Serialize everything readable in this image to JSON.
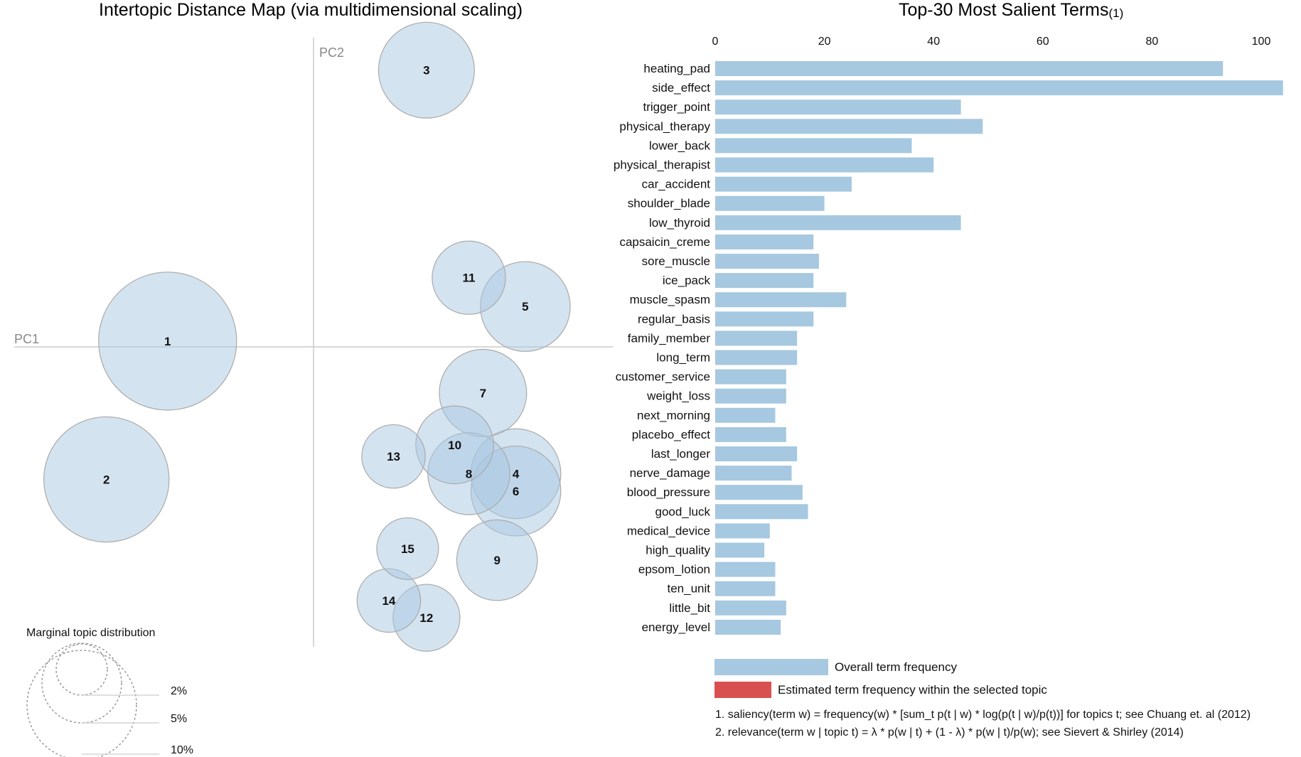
{
  "map": {
    "title": "Intertopic Distance Map (via multidimensional scaling)",
    "pc1_label": "PC1",
    "pc2_label": "PC2",
    "marginal_title": "Marginal topic distribution",
    "marginal_levels": [
      "2%",
      "5%",
      "10%"
    ]
  },
  "terms": {
    "title": "Top-30 Most Salient Terms",
    "title_note": "(1)"
  },
  "legend": {
    "overall": "Overall term frequency",
    "estimated": "Estimated term frequency within the selected topic"
  },
  "notes": [
    "1. saliency(term w) = frequency(w) * [sum_t p(t | w) * log(p(t | w)/p(t))] for topics t; see Chuang et. al (2012)",
    "2. relevance(term w | topic t) = λ * p(w | t) + (1 - λ) * p(w | t)/p(w); see Sievert & Shirley (2014)"
  ],
  "colors": {
    "bar": "#a6c8e0",
    "bar_selected": "#d95050",
    "bubble_fill": "#aac8e2",
    "bubble_stroke": "#aaaaaa",
    "axis": "#cccccc"
  },
  "chart_data": [
    {
      "type": "scatter",
      "title": "Intertopic Distance Map (via multidimensional scaling)",
      "xlabel": "PC1",
      "ylabel": "PC2",
      "note": "topic positions in principal-component units (axes unlabeled; values estimated relative to origin), size = marginal topic distribution %",
      "points": [
        {
          "topic": "1",
          "x": -0.31,
          "y": 0.01,
          "size": 8.5
        },
        {
          "topic": "2",
          "x": -0.44,
          "y": -0.23,
          "size": 7.0
        },
        {
          "topic": "3",
          "x": 0.24,
          "y": 0.48,
          "size": 4.1
        },
        {
          "topic": "4",
          "x": 0.43,
          "y": -0.22,
          "size": 3.6
        },
        {
          "topic": "5",
          "x": 0.45,
          "y": 0.07,
          "size": 3.6
        },
        {
          "topic": "6",
          "x": 0.43,
          "y": -0.25,
          "size": 3.6
        },
        {
          "topic": "7",
          "x": 0.36,
          "y": -0.08,
          "size": 3.4
        },
        {
          "topic": "8",
          "x": 0.33,
          "y": -0.22,
          "size": 3.0
        },
        {
          "topic": "9",
          "x": 0.39,
          "y": -0.37,
          "size": 2.9
        },
        {
          "topic": "10",
          "x": 0.3,
          "y": -0.17,
          "size": 2.7
        },
        {
          "topic": "11",
          "x": 0.33,
          "y": 0.12,
          "size": 2.4
        },
        {
          "topic": "12",
          "x": 0.24,
          "y": -0.47,
          "size": 2.0
        },
        {
          "topic": "13",
          "x": 0.17,
          "y": -0.19,
          "size": 1.8
        },
        {
          "topic": "14",
          "x": 0.16,
          "y": -0.44,
          "size": 1.8
        },
        {
          "topic": "15",
          "x": 0.2,
          "y": -0.35,
          "size": 1.7
        }
      ]
    },
    {
      "type": "bar",
      "orientation": "horizontal",
      "title": "Top-30 Most Salient Terms",
      "xlim": [
        0,
        100
      ],
      "xticks": [
        0,
        20,
        40,
        60,
        80,
        100
      ],
      "categories": [
        "heating_pad",
        "side_effect",
        "trigger_point",
        "physical_therapy",
        "lower_back",
        "physical_therapist",
        "car_accident",
        "shoulder_blade",
        "low_thyroid",
        "capsaicin_creme",
        "sore_muscle",
        "ice_pack",
        "muscle_spasm",
        "regular_basis",
        "family_member",
        "long_term",
        "customer_service",
        "weight_loss",
        "next_morning",
        "placebo_effect",
        "last_longer",
        "nerve_damage",
        "blood_pressure",
        "good_luck",
        "medical_device",
        "high_quality",
        "epsom_lotion",
        "ten_unit",
        "little_bit",
        "energy_level"
      ],
      "series": [
        {
          "name": "Overall term frequency",
          "values": [
            93,
            104,
            45,
            49,
            36,
            40,
            25,
            20,
            45,
            18,
            19,
            18,
            24,
            18,
            15,
            15,
            13,
            13,
            11,
            13,
            15,
            14,
            16,
            17,
            10,
            9,
            11,
            11,
            13,
            12
          ]
        }
      ]
    }
  ]
}
